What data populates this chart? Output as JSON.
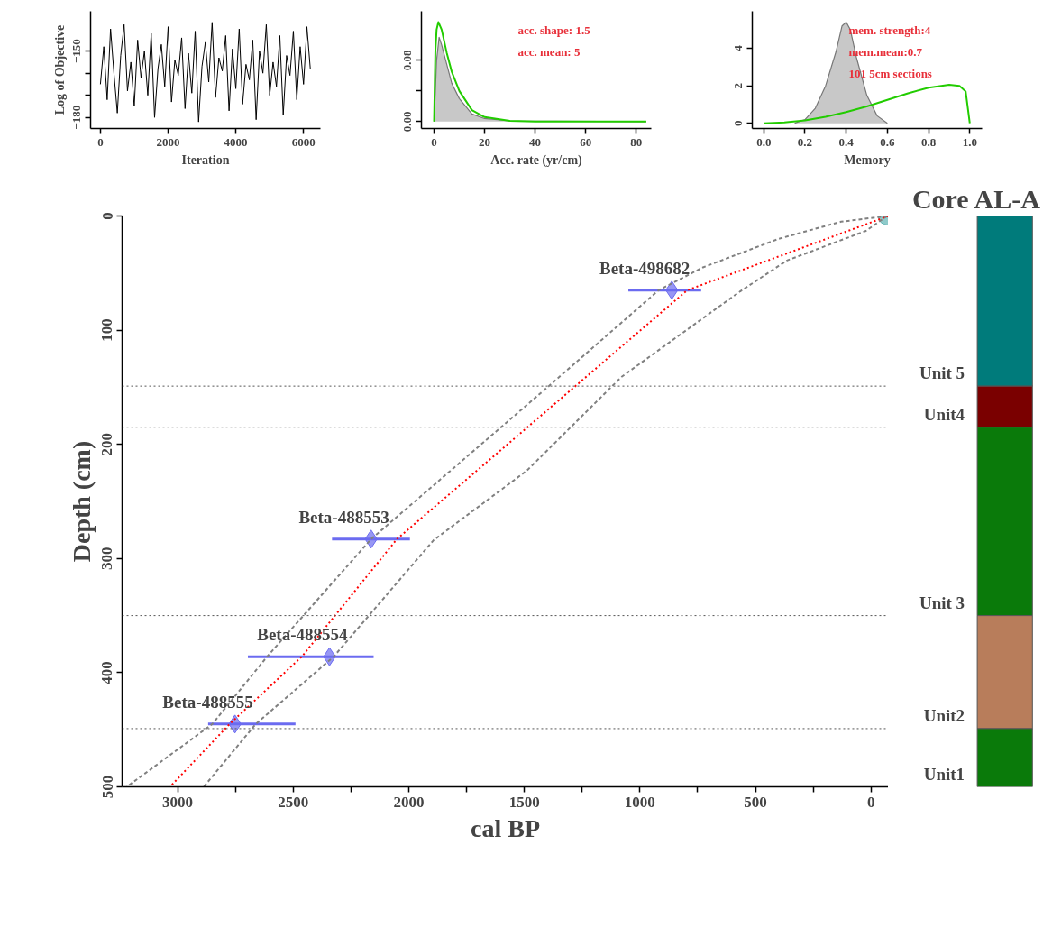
{
  "chart_data": [
    {
      "type": "line",
      "ylabel": "Log of Objective",
      "xlabel": "Iteration",
      "xlim": [
        -290,
        6500
      ],
      "ylim": [
        -185,
        -132
      ],
      "xticks": [
        0,
        2000,
        4000,
        6000
      ],
      "yticks": [
        -150,
        {
          "value": -160,
          "label": null
        },
        {
          "value": -170,
          "label": null
        },
        -180
      ],
      "grid": false,
      "series": [
        {
          "color": "#000000",
          "x": [
            0,
            100,
            200,
            300,
            400,
            500,
            600,
            700,
            800,
            900,
            1000,
            1100,
            1200,
            1300,
            1400,
            1500,
            1600,
            1700,
            1800,
            1900,
            2000,
            2100,
            2200,
            2300,
            2400,
            2500,
            2600,
            2700,
            2800,
            2900,
            3000,
            3100,
            3200,
            3300,
            3400,
            3500,
            3600,
            3700,
            3800,
            3900,
            4000,
            4100,
            4200,
            4300,
            4400,
            4500,
            4600,
            4700,
            4800,
            4900,
            5000,
            5100,
            5200,
            5300,
            5400,
            5500,
            5600,
            5700,
            5800,
            5900,
            6000,
            6100,
            6200
          ],
          "values": [
            -165,
            -148,
            -172,
            -140,
            -160,
            -178,
            -152,
            -138,
            -168,
            -155,
            -175,
            -145,
            -162,
            -150,
            -170,
            -142,
            -180,
            -158,
            -147,
            -166,
            -139,
            -173,
            -154,
            -161,
            -144,
            -176,
            -151,
            -169,
            -141,
            -182,
            -157,
            -146,
            -164,
            -137,
            -171,
            -153,
            -159,
            -143,
            -177,
            -149,
            -167,
            -140,
            -174,
            -156,
            -163,
            -145,
            -181,
            -150,
            -160,
            -138,
            -170,
            -155,
            -166,
            -143,
            -179,
            -152,
            -161,
            -141,
            -172,
            -148,
            -165,
            -139,
            -158
          ]
        }
      ]
    },
    {
      "type": "area",
      "xlabel": "Acc. rate (yr/cm)",
      "xlim": [
        -5,
        86
      ],
      "ylim": [
        -0.009,
        0.144
      ],
      "xticks": [
        0,
        20,
        40,
        60,
        80
      ],
      "yticks": [
        {
          "value": 0,
          "label": "0.00"
        },
        {
          "value": 0.04,
          "label": null
        },
        {
          "value": 0.08,
          "label": "0.08"
        }
      ],
      "grid": false,
      "annotations": [
        "acc. shape: 1.5",
        "acc. mean:  5"
      ],
      "series": [
        {
          "type": "area",
          "color": "#c8c8c8",
          "x": [
            0,
            1,
            2,
            3,
            5,
            7,
            10,
            15,
            20,
            30,
            84
          ],
          "values": [
            0,
            0.08,
            0.11,
            0.1,
            0.075,
            0.05,
            0.03,
            0.01,
            0.004,
            0.001,
            0
          ]
        },
        {
          "type": "line",
          "color": "#22cc00",
          "x": [
            0,
            0.5,
            1,
            1.7,
            3,
            5,
            7,
            10,
            15,
            20,
            30,
            40,
            60,
            84
          ],
          "values": [
            0,
            0.09,
            0.12,
            0.13,
            0.12,
            0.09,
            0.065,
            0.04,
            0.015,
            0.006,
            0.001,
            0,
            0,
            0
          ]
        }
      ]
    },
    {
      "type": "area",
      "xlabel": "Memory",
      "xlim": [
        -0.056,
        1.06
      ],
      "ylim": [
        -0.28,
        5.98
      ],
      "xticks": [
        {
          "value": 0,
          "label": "0.0"
        },
        0.2,
        0.4,
        0.6,
        0.8,
        {
          "value": 1,
          "label": "1.0"
        }
      ],
      "yticks": [
        0,
        2,
        4
      ],
      "grid": false,
      "annotations": [
        "mem. strength:4",
        "mem.mean:0.7",
        "101 5cm sections"
      ],
      "series": [
        {
          "type": "area",
          "color": "#c8c8c8",
          "x": [
            0.15,
            0.2,
            0.25,
            0.3,
            0.35,
            0.38,
            0.4,
            0.42,
            0.45,
            0.5,
            0.55,
            0.6
          ],
          "values": [
            0,
            0.2,
            0.8,
            2,
            3.8,
            5.2,
            5.4,
            5.0,
            3.5,
            1.5,
            0.4,
            0
          ]
        },
        {
          "type": "line",
          "color": "#22cc00",
          "x": [
            0,
            0.1,
            0.2,
            0.3,
            0.4,
            0.5,
            0.6,
            0.7,
            0.8,
            0.9,
            0.95,
            0.98,
            1.0
          ],
          "values": [
            0,
            0.05,
            0.15,
            0.35,
            0.6,
            0.9,
            1.25,
            1.6,
            1.9,
            2.05,
            2.0,
            1.7,
            0
          ]
        }
      ]
    },
    {
      "type": "line",
      "xlabel": "cal BP",
      "ylabel": "Depth (cm)",
      "xlim": [
        3240,
        -75
      ],
      "ylim": [
        500,
        0
      ],
      "xticks": [
        3000,
        {
          "value": 2750,
          "label": null
        },
        2500,
        {
          "value": 2250,
          "label": null
        },
        2000,
        {
          "value": 1750,
          "label": null
        },
        1500,
        {
          "value": 1250,
          "label": null
        },
        1000,
        {
          "value": 750,
          "label": null
        },
        500,
        {
          "value": 250,
          "label": null
        },
        0
      ],
      "yticks": [
        0,
        100,
        200,
        300,
        400,
        500
      ],
      "grid": false,
      "series": [
        {
          "type": "line",
          "color": "#808080",
          "line_style": "dashed",
          "x": [
            -70,
            130,
            400,
            727,
            919,
            1400,
            2163,
            2613,
            2850,
            3220
          ],
          "values": [
            0,
            5,
            20,
            45,
            65,
            150,
            283,
            386,
            445,
            500
          ]
        },
        {
          "type": "line",
          "color": "#808080",
          "line_style": "dashed",
          "x": [
            -70,
            22,
            364,
            566,
            1080,
            1489,
            1893,
            2325,
            2662,
            2887
          ],
          "values": [
            0,
            13,
            39,
            66,
            141,
            223,
            284,
            386,
            445,
            500
          ]
        },
        {
          "type": "line",
          "color": "#ff0000",
          "line_style": "dotted",
          "x": [
            -75,
            795,
            1573,
            2051,
            2463,
            2775,
            3033
          ],
          "values": [
            0,
            65,
            200,
            283,
            386,
            445,
            500
          ]
        },
        {
          "type": "scatter",
          "color": "#6b6bf0",
          "marker": "diamond",
          "x": [
            862,
            2163,
            2343,
            2752
          ],
          "values": [
            65,
            283,
            386,
            445
          ],
          "xerrors": [
            [
              735,
              1050
            ],
            [
              1995,
              2332
            ],
            [
              2152,
              2696
            ],
            [
              2490,
              2868
            ]
          ]
        },
        {
          "type": "scatter",
          "color": "#5fb3b3",
          "marker": "circle",
          "x": [
            -70
          ],
          "values": [
            0
          ]
        }
      ],
      "annotations": [
        {
          "text": "Beta-498682",
          "x": 862,
          "y": 65
        },
        {
          "text": "Beta-488553",
          "x": 2163,
          "y": 283
        },
        {
          "text": "Beta-488554",
          "x": 2343,
          "y": 386
        },
        {
          "text": "Beta-488555",
          "x": 2752,
          "y": 445
        }
      ],
      "ref_lines": [
        {
          "axis": "y",
          "value": 149,
          "color": "#555555",
          "line_style": "dotted"
        },
        {
          "axis": "y",
          "value": 185,
          "color": "#555555",
          "line_style": "dotted"
        },
        {
          "axis": "y",
          "value": 350,
          "color": "#555555",
          "line_style": "dotted"
        },
        {
          "axis": "y",
          "value": 449,
          "color": "#555555",
          "line_style": "dotted"
        }
      ]
    },
    {
      "type": "bar",
      "stacked": true,
      "title": "Core AL-A",
      "categories": [
        null
      ],
      "ylim": [
        500,
        0
      ],
      "tick_labels": false,
      "series": [
        {
          "name": "Unit 5",
          "color": "#007b7b",
          "values": [
            149
          ]
        },
        {
          "name": "Unit4",
          "color": "#7a0000",
          "values": [
            36
          ]
        },
        {
          "name": "Unit 3",
          "color": "#0a7a0a",
          "values": [
            165
          ]
        },
        {
          "name": "Unit2",
          "color": "#b87d5b",
          "values": [
            99
          ]
        },
        {
          "name": "Unit1",
          "color": "#0a7a0a",
          "values": [
            51
          ]
        }
      ]
    }
  ]
}
